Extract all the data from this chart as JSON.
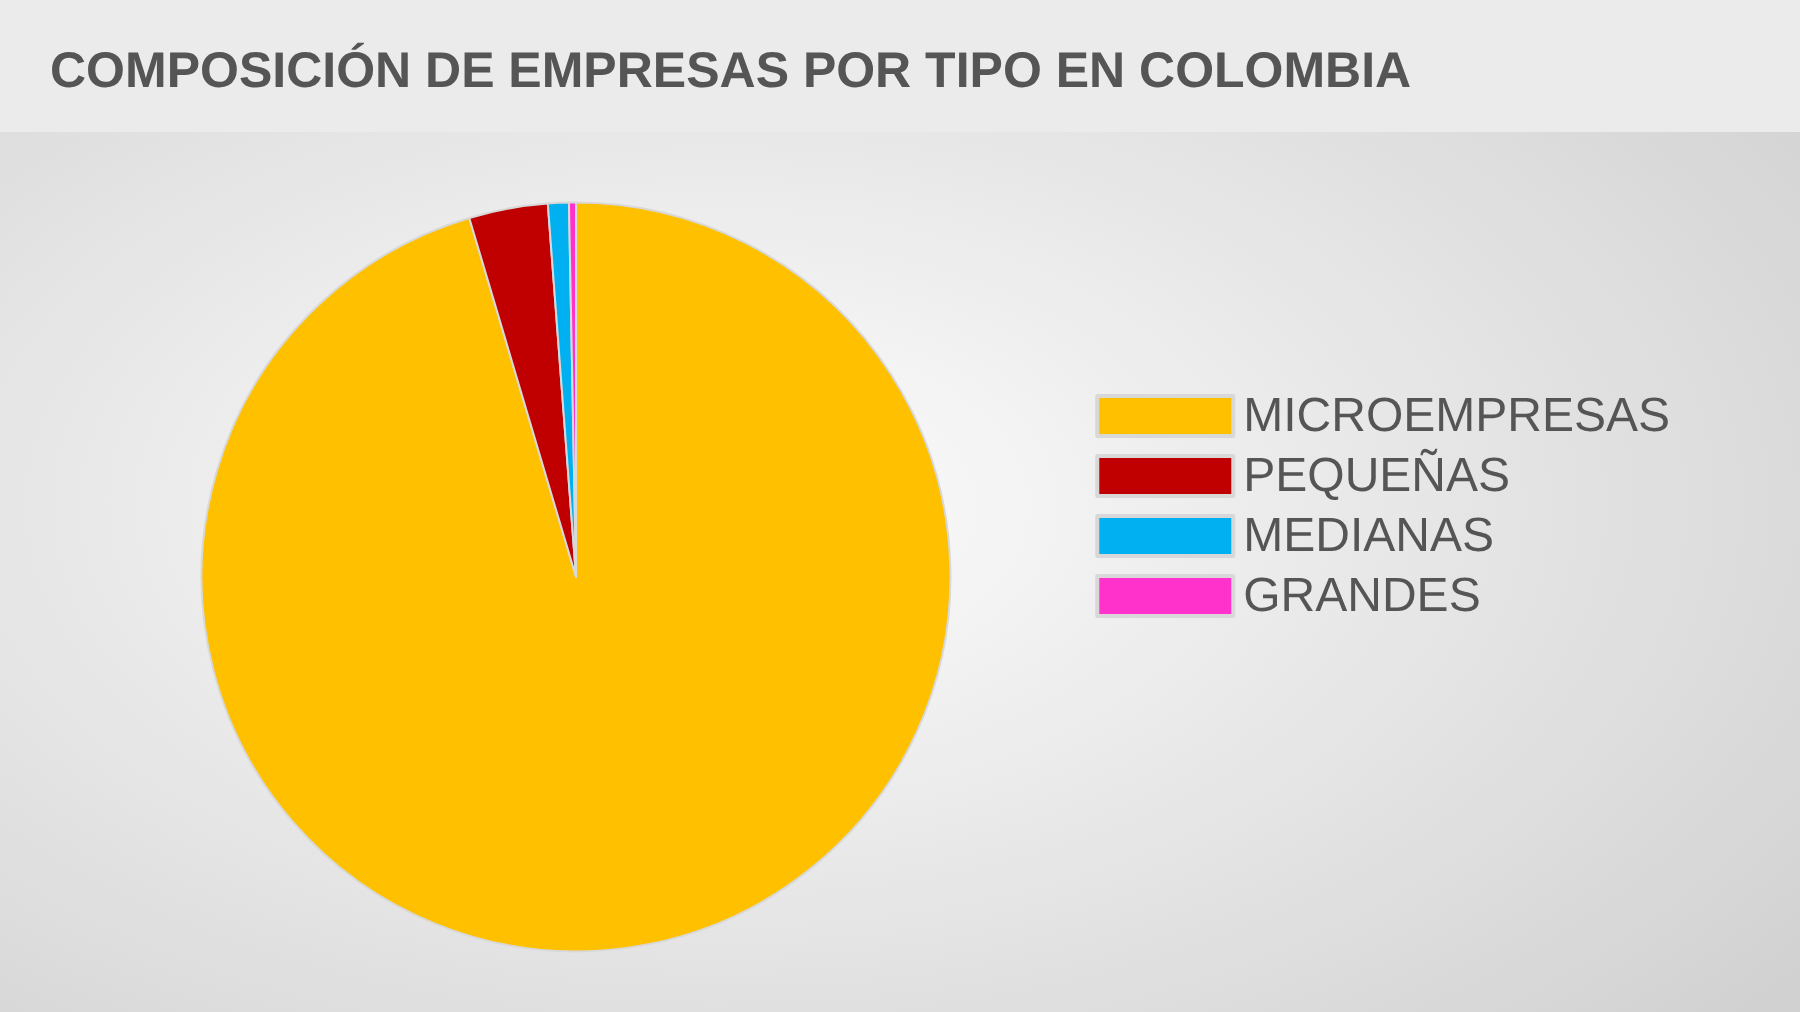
{
  "chart_data": {
    "type": "pie",
    "title": "COMPOSICIÓN DE EMPRESAS POR TIPO EN COLOMBIA",
    "categories": [
      "MICROEMPRESAS",
      "PEQUEÑAS",
      "MEDIANAS",
      "GRANDES"
    ],
    "values": [
      95.4,
      3.4,
      0.9,
      0.3
    ],
    "colors": [
      "#ffc000",
      "#c00000",
      "#00b0f0",
      "#ff33cc"
    ],
    "legend": "right"
  }
}
